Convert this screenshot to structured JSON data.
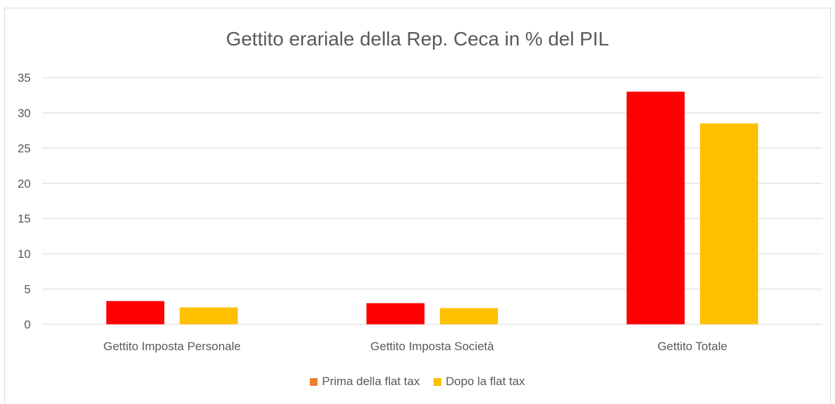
{
  "chart_data": {
    "type": "bar",
    "title": "Gettito erariale della Rep. Ceca in % del PIL",
    "xlabel": "",
    "ylabel": "",
    "categories": [
      "Gettito Imposta Personale",
      "Gettito Imposta Società",
      "Gettito Totale"
    ],
    "series": [
      {
        "name": "Prima della flat tax",
        "values": [
          3.3,
          3.0,
          33.0
        ],
        "color": "#ff0000",
        "legend_color": "#ed7d31"
      },
      {
        "name": "Dopo la flat tax",
        "values": [
          2.4,
          2.3,
          28.5
        ],
        "color": "#ffc000",
        "legend_color": "#ffc000"
      }
    ],
    "ylim": [
      0,
      35
    ],
    "yticks": [
      "0",
      "5",
      "10",
      "15",
      "20",
      "25",
      "30",
      "35"
    ],
    "grid": true,
    "legend_position": "bottom"
  }
}
